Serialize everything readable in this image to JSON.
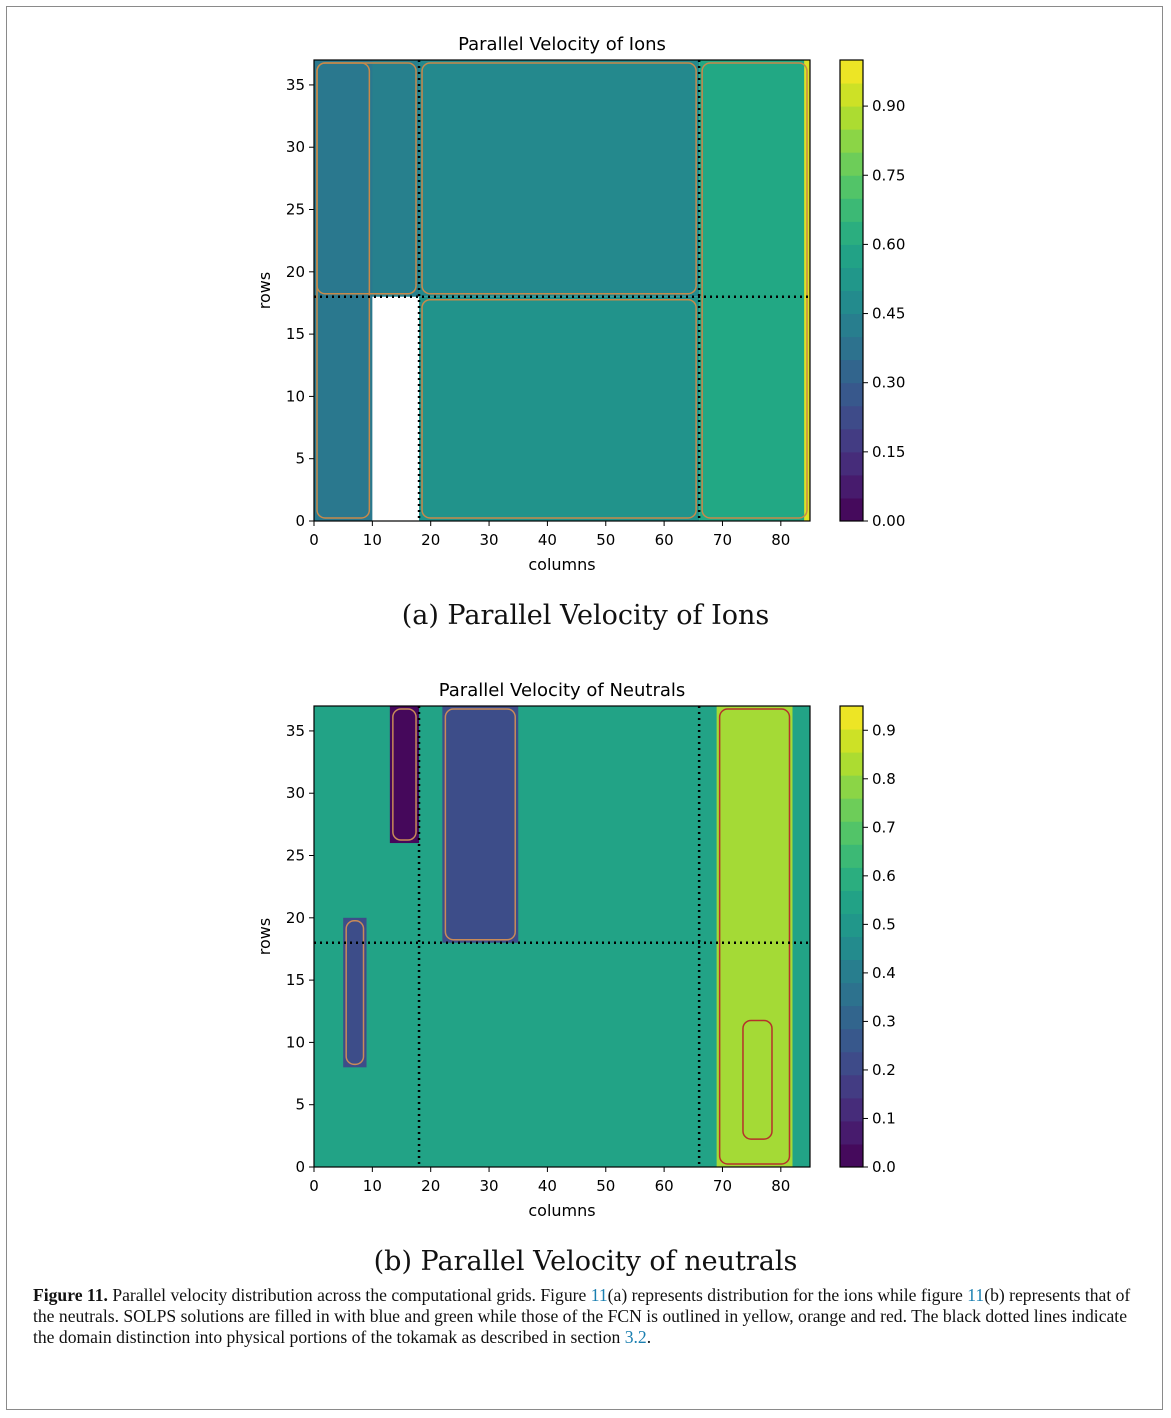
{
  "chart_data": [
    {
      "type": "heatmap",
      "title": "Parallel Velocity of Ions",
      "subcaption": "(a) Parallel Velocity of Ions",
      "xlabel": "columns",
      "ylabel": "rows",
      "xlim": [
        0,
        85
      ],
      "ylim": [
        0,
        37
      ],
      "xticks": [
        0,
        10,
        20,
        30,
        40,
        50,
        60,
        70,
        80
      ],
      "yticks": [
        0,
        5,
        10,
        15,
        20,
        25,
        30,
        35
      ],
      "colorbar": {
        "range": [
          0,
          1.0
        ],
        "ticks": [
          "0.00",
          "0.15",
          "0.30",
          "0.45",
          "0.60",
          "0.75",
          "0.90"
        ],
        "tick_values": [
          0,
          0.15,
          0.3,
          0.45,
          0.6,
          0.75,
          0.9
        ]
      },
      "colormap": "viridis",
      "divider_lines": {
        "vertical_columns": [
          18,
          66
        ],
        "horizontal_rows": [
          18
        ],
        "style": "black dotted"
      },
      "regions": [
        {
          "name": "upper-left",
          "columns": [
            0,
            18
          ],
          "rows": [
            18,
            37
          ],
          "value": 0.43
        },
        {
          "name": "upper-middle",
          "columns": [
            18,
            66
          ],
          "rows": [
            18,
            37
          ],
          "value": 0.47
        },
        {
          "name": "lower-middle",
          "columns": [
            18,
            66
          ],
          "rows": [
            0,
            18
          ],
          "value": 0.51
        },
        {
          "name": "left-edge",
          "columns": [
            0,
            10
          ],
          "rows": [
            0,
            37
          ],
          "value": 0.4
        },
        {
          "name": "right-side",
          "columns": [
            66,
            85
          ],
          "rows": [
            0,
            37
          ],
          "value": 0.6
        },
        {
          "name": "right-edge",
          "columns": [
            84,
            85
          ],
          "rows": [
            0,
            37
          ],
          "value": 0.95
        }
      ]
    },
    {
      "type": "heatmap",
      "title": "Parallel Velocity of Neutrals",
      "subcaption": "(b) Parallel Velocity of neutrals",
      "xlabel": "columns",
      "ylabel": "rows",
      "xlim": [
        0,
        85
      ],
      "ylim": [
        0,
        37
      ],
      "xticks": [
        0,
        10,
        20,
        30,
        40,
        50,
        60,
        70,
        80
      ],
      "yticks": [
        0,
        5,
        10,
        15,
        20,
        25,
        30,
        35
      ],
      "colorbar": {
        "range": [
          0,
          0.95
        ],
        "ticks": [
          "0.0",
          "0.1",
          "0.2",
          "0.3",
          "0.4",
          "0.5",
          "0.6",
          "0.7",
          "0.8",
          "0.9"
        ],
        "tick_values": [
          0,
          0.1,
          0.2,
          0.3,
          0.4,
          0.5,
          0.6,
          0.7,
          0.8,
          0.9
        ]
      },
      "colormap": "viridis",
      "divider_lines": {
        "vertical_columns": [
          18,
          66
        ],
        "horizontal_rows": [
          18
        ],
        "style": "black dotted"
      },
      "regions": [
        {
          "name": "background",
          "columns": [
            0,
            85
          ],
          "rows": [
            0,
            37
          ],
          "value": 0.55
        },
        {
          "name": "minimum-core",
          "columns": [
            13,
            18
          ],
          "rows": [
            26,
            37
          ],
          "value": 0.02
        },
        {
          "name": "upper-low-lobe",
          "columns": [
            22,
            35
          ],
          "rows": [
            18,
            37
          ],
          "value": 0.22
        },
        {
          "name": "left-low-lobe",
          "columns": [
            5,
            9
          ],
          "rows": [
            8,
            20
          ],
          "value": 0.22
        },
        {
          "name": "right-maximum",
          "columns": [
            73,
            79
          ],
          "rows": [
            2,
            12
          ],
          "value": 0.93
        },
        {
          "name": "right-high-band",
          "columns": [
            69,
            82
          ],
          "rows": [
            0,
            37
          ],
          "value": 0.82
        }
      ]
    }
  ],
  "caption": {
    "label": "Figure 11.",
    "text_1": " Parallel velocity distribution across the computational grids. Figure ",
    "ref_1": "11",
    "text_2": "(a) represents distribution for the ions while figure ",
    "ref_2": "11",
    "text_3": "(b) represents that of the neutrals. SOLPS solutions are filled in with blue and green while those of the FCN is outlined in yellow, orange and red. The black dotted lines indicate the domain distinction into physical portions of the tokamak as described in section ",
    "ref_3": "3.2",
    "text_4": "."
  }
}
